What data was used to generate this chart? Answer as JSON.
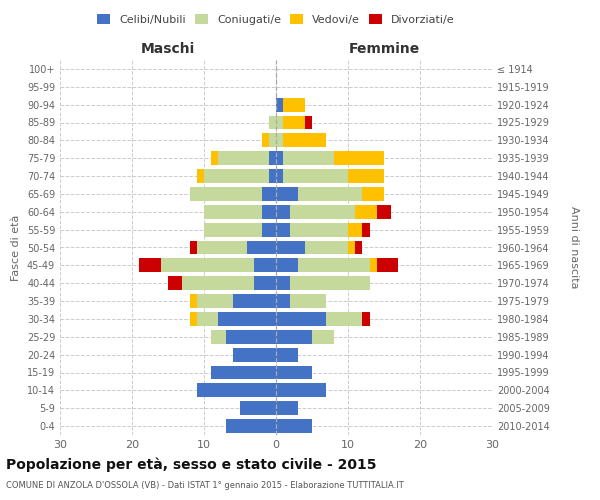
{
  "age_groups": [
    "0-4",
    "5-9",
    "10-14",
    "15-19",
    "20-24",
    "25-29",
    "30-34",
    "35-39",
    "40-44",
    "45-49",
    "50-54",
    "55-59",
    "60-64",
    "65-69",
    "70-74",
    "75-79",
    "80-84",
    "85-89",
    "90-94",
    "95-99",
    "100+"
  ],
  "birth_years": [
    "2010-2014",
    "2005-2009",
    "2000-2004",
    "1995-1999",
    "1990-1994",
    "1985-1989",
    "1980-1984",
    "1975-1979",
    "1970-1974",
    "1965-1969",
    "1960-1964",
    "1955-1959",
    "1950-1954",
    "1945-1949",
    "1940-1944",
    "1935-1939",
    "1930-1934",
    "1925-1929",
    "1920-1924",
    "1915-1919",
    "≤ 1914"
  ],
  "maschi": {
    "celibi": [
      7,
      5,
      11,
      9,
      6,
      7,
      8,
      6,
      3,
      3,
      4,
      2,
      2,
      2,
      1,
      1,
      0,
      0,
      0,
      0,
      0
    ],
    "coniugati": [
      0,
      0,
      0,
      0,
      0,
      2,
      3,
      5,
      10,
      13,
      7,
      8,
      8,
      10,
      9,
      7,
      1,
      1,
      0,
      0,
      0
    ],
    "vedovi": [
      0,
      0,
      0,
      0,
      0,
      0,
      1,
      1,
      0,
      0,
      0,
      0,
      0,
      0,
      1,
      1,
      1,
      0,
      0,
      0,
      0
    ],
    "divorziati": [
      0,
      0,
      0,
      0,
      0,
      0,
      0,
      0,
      2,
      3,
      1,
      0,
      0,
      0,
      0,
      0,
      0,
      0,
      0,
      0,
      0
    ]
  },
  "femmine": {
    "nubili": [
      5,
      3,
      7,
      5,
      3,
      5,
      7,
      2,
      2,
      3,
      4,
      2,
      2,
      3,
      1,
      1,
      0,
      0,
      1,
      0,
      0
    ],
    "coniugate": [
      0,
      0,
      0,
      0,
      0,
      3,
      5,
      5,
      11,
      10,
      6,
      8,
      9,
      9,
      9,
      7,
      1,
      1,
      0,
      0,
      0
    ],
    "vedove": [
      0,
      0,
      0,
      0,
      0,
      0,
      0,
      0,
      0,
      1,
      1,
      2,
      3,
      3,
      5,
      7,
      6,
      3,
      3,
      0,
      0
    ],
    "divorziate": [
      0,
      0,
      0,
      0,
      0,
      0,
      1,
      0,
      0,
      3,
      1,
      1,
      2,
      0,
      0,
      0,
      0,
      1,
      0,
      0,
      0
    ]
  },
  "color_celibi": "#4472c4",
  "color_coniugati": "#c5d99c",
  "color_vedovi": "#ffc000",
  "color_divorziati": "#cc0000",
  "xlim": 30,
  "title": "Popolazione per età, sesso e stato civile - 2015",
  "subtitle": "COMUNE DI ANZOLA D'OSSOLA (VB) - Dati ISTAT 1° gennaio 2015 - Elaborazione TUTTITALIA.IT",
  "ylabel_left": "Fasce di età",
  "ylabel_right": "Anni di nascita",
  "xlabel_maschi": "Maschi",
  "xlabel_femmine": "Femmine"
}
